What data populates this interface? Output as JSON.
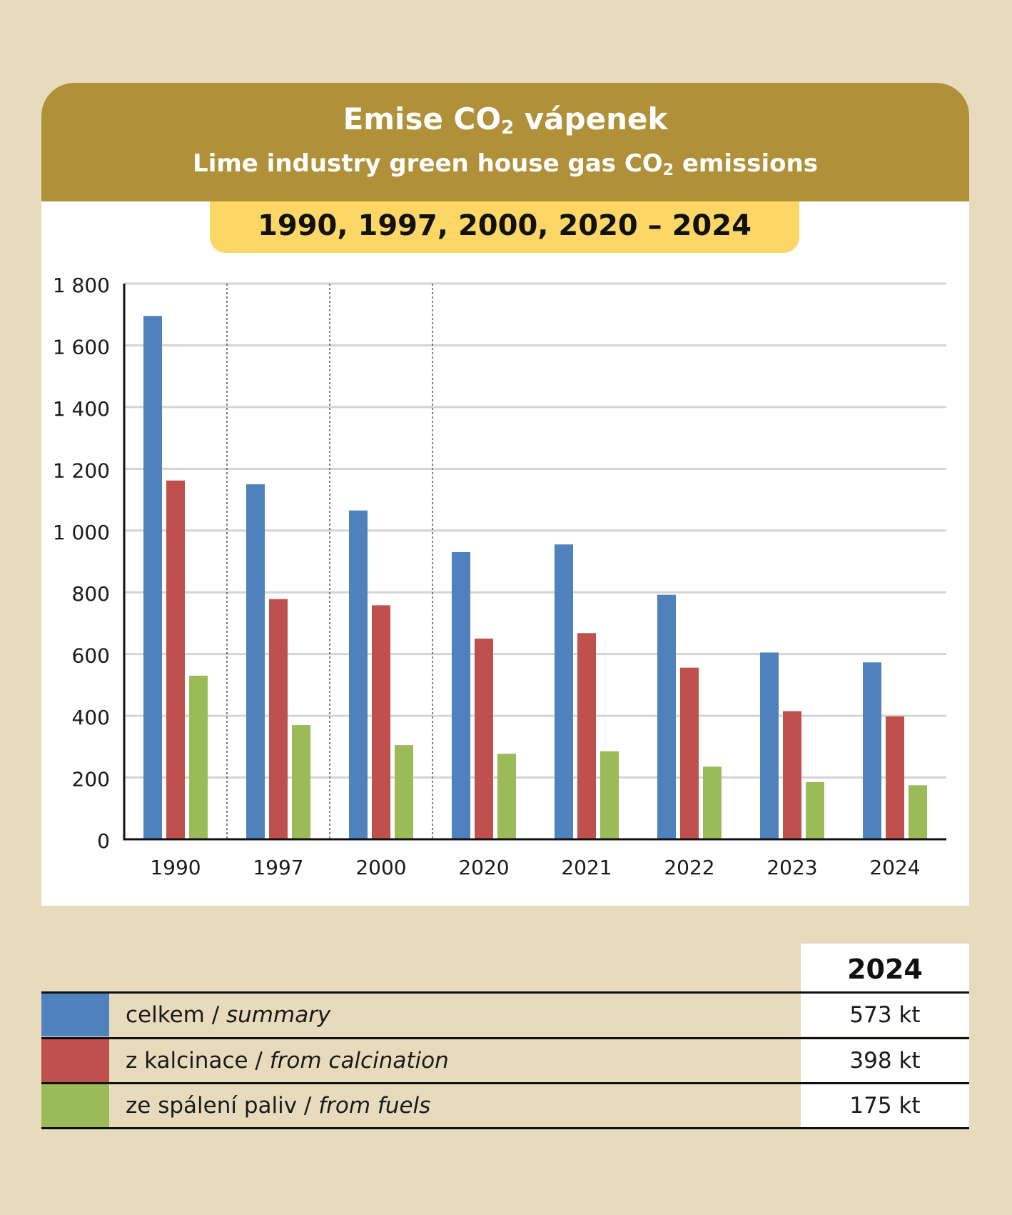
{
  "header": {
    "title_cz_prefix": "Emise CO",
    "title_cz_sub": "2",
    "title_cz_suffix": " vápenek",
    "title_en_prefix": "Lime industry green house gas CO",
    "title_en_sub": "2",
    "title_en_suffix": " emissions",
    "years": "1990, 1997, 2000, 2020 – 2024"
  },
  "colors": {
    "header": "#b0913a",
    "pill": "#fdd765",
    "summary": "#4f81bd",
    "calcination": "#c0504d",
    "fuels": "#9bbb59",
    "background": "#e8dbbd"
  },
  "chart_data": {
    "type": "bar",
    "title": "Emise CO2 vápenek / Lime industry green house gas CO2 emissions",
    "categories": [
      "1990",
      "1997",
      "2000",
      "2020",
      "2021",
      "2022",
      "2023",
      "2024"
    ],
    "series": [
      {
        "name": "celkem / summary",
        "key": "summary",
        "values": [
          1695,
          1150,
          1065,
          930,
          955,
          792,
          605,
          573
        ]
      },
      {
        "name": "z kalcinace / from calcination",
        "key": "calcination",
        "values": [
          1162,
          778,
          758,
          650,
          668,
          556,
          415,
          398
        ]
      },
      {
        "name": "ze spálení paliv / from fuels",
        "key": "fuels",
        "values": [
          530,
          370,
          305,
          277,
          285,
          235,
          185,
          175
        ]
      }
    ],
    "yticks": [
      "1 800",
      "1 600",
      "1 400",
      "1 200",
      "1 000",
      "800",
      "600",
      "400",
      "200",
      "0"
    ],
    "ylim": [
      0,
      1800
    ],
    "xlabel": "",
    "ylabel": "",
    "grid": true
  },
  "legend": {
    "year": "2024",
    "rows": [
      {
        "key": "summary",
        "label_cz": "celkem / ",
        "label_en": "summary",
        "value": "573 kt"
      },
      {
        "key": "calcination",
        "label_cz": "z kalcinace / ",
        "label_en": "from calcination",
        "value": "398 kt"
      },
      {
        "key": "fuels",
        "label_cz": "ze spálení paliv / ",
        "label_en": "from fuels",
        "value": "175 kt"
      }
    ]
  }
}
